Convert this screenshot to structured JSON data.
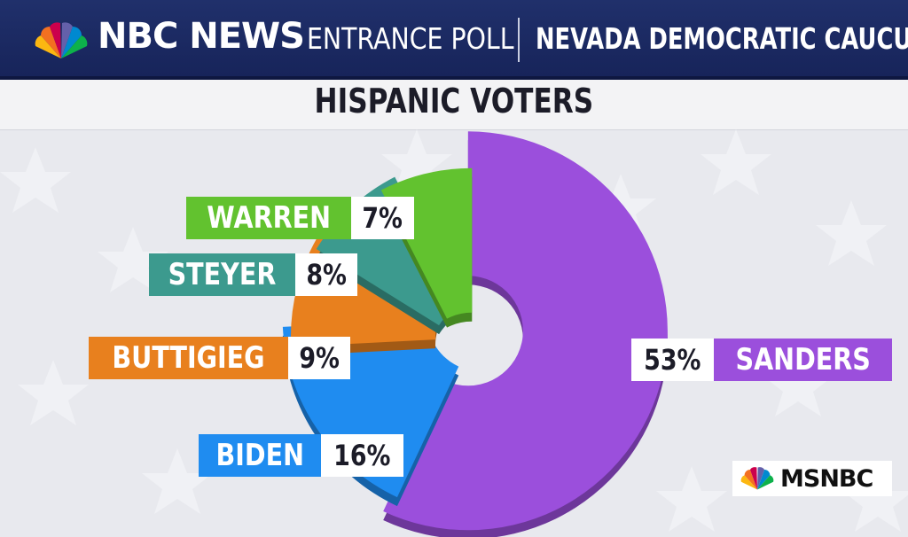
{
  "header": {
    "brand": "NBC NEWS",
    "poll_type": "ENTRANCE POLL",
    "event": "NEVADA DEMOCRATIC CAUCUS"
  },
  "subtitle": "HISPANIC VOTERS",
  "logo": {
    "network": "MSNBC"
  },
  "colors": {
    "header_bg": "#1c2a64",
    "sanders": "#9b4fdc",
    "biden": "#1f8cf0",
    "buttigieg": "#e8801e",
    "steyer": "#3c9a8e",
    "warren": "#62c22f"
  },
  "chart_data": {
    "type": "pie",
    "title": "HISPANIC VOTERS",
    "categories": [
      "SANDERS",
      "BIDEN",
      "BUTTIGIEG",
      "STEYER",
      "WARREN"
    ],
    "values": [
      53,
      16,
      9,
      8,
      7
    ],
    "value_labels": [
      "53%",
      "16%",
      "9%",
      "8%",
      "7%"
    ],
    "colors": [
      "#9b4fdc",
      "#1f8cf0",
      "#e8801e",
      "#3c9a8e",
      "#62c22f"
    ],
    "unit": "%",
    "style": "3d-exploded-donut"
  }
}
